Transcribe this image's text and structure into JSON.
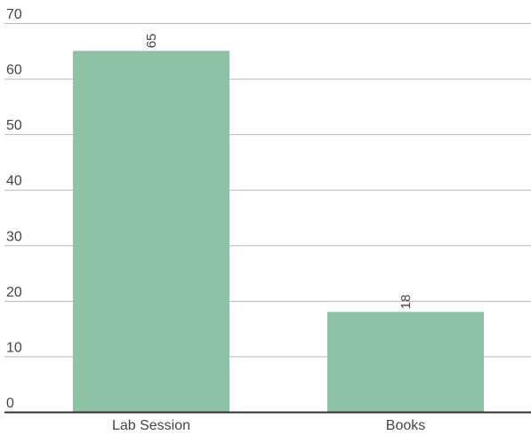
{
  "chart_data": {
    "type": "bar",
    "categories": [
      "Lab Session",
      "Books"
    ],
    "values": [
      65,
      18
    ],
    "data_labels": [
      "65",
      "18"
    ],
    "y_ticks": [
      0,
      10,
      20,
      30,
      40,
      50,
      60,
      70
    ],
    "ylim": [
      0,
      70
    ],
    "grid": true,
    "legend": "none",
    "bar_color": "#8dc2a5",
    "title": "",
    "xlabel": "",
    "ylabel": ""
  }
}
